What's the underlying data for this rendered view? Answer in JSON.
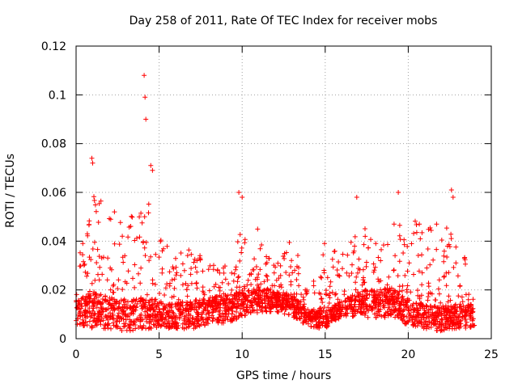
{
  "chart_data": {
    "type": "scatter",
    "title": "Day 258 of 2011, Rate Of TEC Index for receiver mobs",
    "xlabel": "GPS time / hours",
    "ylabel": "ROTI / TECUs",
    "xlim": [
      0,
      25
    ],
    "ylim": [
      0,
      0.12
    ],
    "xticks": [
      "0",
      "5",
      "10",
      "15",
      "20",
      "25"
    ],
    "yticks": [
      "0",
      "0.02",
      "0.04",
      "0.06",
      "0.08",
      "0.1",
      "0.12"
    ],
    "grid": true,
    "marker": "+",
    "color": "#ff0000",
    "notable_points": {
      "x": [
        4.1,
        4.15,
        4.2,
        0.95,
        1.0,
        4.5,
        4.6,
        9.8,
        10.0,
        16.9,
        19.4,
        22.6,
        22.7
      ],
      "y": [
        0.108,
        0.099,
        0.09,
        0.074,
        0.072,
        0.071,
        0.069,
        0.06,
        0.058,
        0.058,
        0.06,
        0.061,
        0.058
      ]
    },
    "envelope": {
      "x_hours": [
        0,
        1,
        2,
        3,
        4,
        5,
        6,
        7,
        8,
        9,
        10,
        11,
        12,
        13,
        14,
        15,
        16,
        17,
        18,
        19,
        20,
        21,
        22,
        23,
        24
      ],
      "upper": [
        0.035,
        0.06,
        0.056,
        0.045,
        0.065,
        0.043,
        0.038,
        0.038,
        0.03,
        0.035,
        0.045,
        0.046,
        0.03,
        0.045,
        0.02,
        0.041,
        0.035,
        0.048,
        0.043,
        0.048,
        0.052,
        0.045,
        0.05,
        0.04,
        0.03
      ],
      "lower": [
        0.006,
        0.004,
        0.004,
        0.003,
        0.004,
        0.004,
        0.004,
        0.004,
        0.006,
        0.006,
        0.009,
        0.01,
        0.011,
        0.009,
        0.005,
        0.004,
        0.009,
        0.009,
        0.008,
        0.009,
        0.005,
        0.004,
        0.003,
        0.004,
        0.004
      ],
      "median": [
        0.012,
        0.015,
        0.013,
        0.012,
        0.013,
        0.012,
        0.011,
        0.012,
        0.013,
        0.014,
        0.015,
        0.016,
        0.015,
        0.014,
        0.009,
        0.009,
        0.012,
        0.015,
        0.016,
        0.016,
        0.012,
        0.011,
        0.01,
        0.01,
        0.011
      ]
    }
  }
}
